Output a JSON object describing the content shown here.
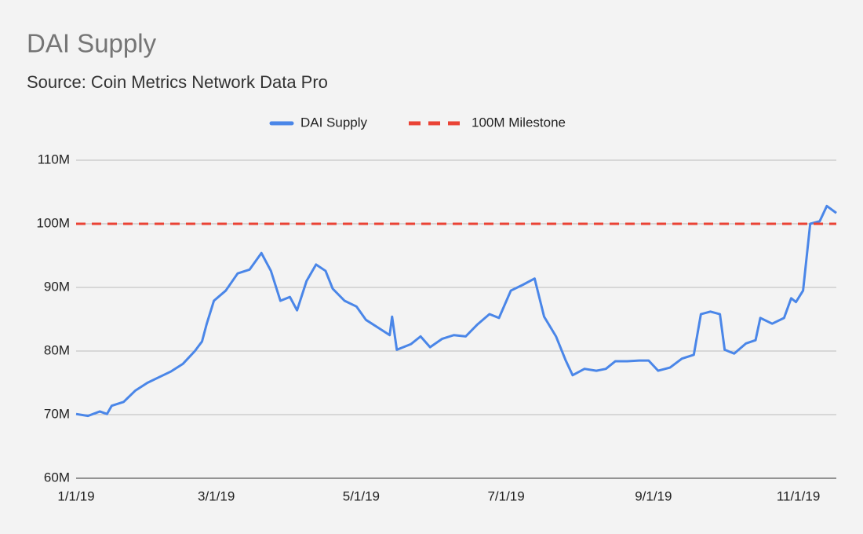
{
  "chart_data": {
    "type": "line",
    "title": "DAI Supply",
    "subtitle": "Source: Coin Metrics Network Data Pro",
    "x": [
      "1/1/19",
      "1/6/19",
      "1/11/19",
      "1/14/19",
      "1/16/19",
      "1/21/19",
      "1/26/19",
      "1/31/19",
      "2/5/19",
      "2/10/19",
      "2/15/19",
      "2/20/19",
      "2/23/19",
      "2/25/19",
      "2/28/19",
      "3/5/19",
      "3/10/19",
      "3/15/19",
      "3/20/19",
      "3/24/19",
      "3/28/19",
      "4/1/19",
      "4/4/19",
      "4/8/19",
      "4/12/19",
      "4/16/19",
      "4/19/19",
      "4/24/19",
      "4/29/19",
      "5/3/19",
      "5/8/19",
      "5/13/19",
      "5/14/19",
      "5/16/19",
      "5/22/19",
      "5/26/19",
      "5/30/19",
      "6/4/19",
      "6/9/19",
      "6/14/19",
      "6/19/19",
      "6/24/19",
      "6/28/19",
      "7/3/19",
      "7/8/19",
      "7/13/19",
      "7/17/19",
      "7/22/19",
      "7/26/19",
      "7/29/19",
      "8/3/19",
      "8/8/19",
      "8/12/19",
      "8/16/19",
      "8/21/19",
      "8/26/19",
      "8/30/19",
      "9/3/19",
      "9/8/19",
      "9/13/19",
      "9/18/19",
      "9/21/19",
      "9/25/19",
      "9/29/19",
      "10/1/19",
      "10/5/19",
      "10/10/19",
      "10/14/19",
      "10/16/19",
      "10/21/19",
      "10/26/19",
      "10/29/19",
      "10/31/19",
      "11/3/19",
      "11/6/19",
      "11/10/19",
      "11/13/19",
      "11/17/19"
    ],
    "series": [
      {
        "name": "DAI Supply",
        "color": "#4a86e8",
        "values": [
          70100000,
          69800000,
          70500000,
          70100000,
          71400000,
          72000000,
          73800000,
          75000000,
          75900000,
          76800000,
          78000000,
          80000000,
          81500000,
          84300000,
          87900000,
          89500000,
          92200000,
          92800000,
          95400000,
          92600000,
          87900000,
          88500000,
          86400000,
          91000000,
          93600000,
          92600000,
          89800000,
          87900000,
          87000000,
          84900000,
          83700000,
          82500000,
          85400000,
          80200000,
          81100000,
          82300000,
          80600000,
          81900000,
          82500000,
          82300000,
          84200000,
          85800000,
          85200000,
          89500000,
          90400000,
          91400000,
          85400000,
          82300000,
          78600000,
          76200000,
          77200000,
          76900000,
          77200000,
          78400000,
          78400000,
          78500000,
          78500000,
          76900000,
          77400000,
          78800000,
          79400000,
          85800000,
          86200000,
          85800000,
          80200000,
          79600000,
          81200000,
          81700000,
          85200000,
          84300000,
          85200000,
          88300000,
          87700000,
          89500000,
          100000000,
          100400000,
          102800000,
          101700000
        ]
      }
    ],
    "hline": {
      "name": "100M Milestone",
      "color": "#ea4335",
      "value": 100000000
    },
    "xlim": [
      "1/1/19",
      "11/17/19"
    ],
    "xticks": [
      "1/1/19",
      "3/1/19",
      "5/1/19",
      "7/1/19",
      "9/1/19",
      "11/1/19"
    ],
    "ylim": [
      60000000,
      110000000
    ],
    "yticks": [
      {
        "value": 60000000,
        "label": "60M"
      },
      {
        "value": 70000000,
        "label": "70M"
      },
      {
        "value": 80000000,
        "label": "80M"
      },
      {
        "value": 90000000,
        "label": "90M"
      },
      {
        "value": 100000000,
        "label": "100M"
      },
      {
        "value": 110000000,
        "label": "110M"
      }
    ],
    "grid": true
  }
}
